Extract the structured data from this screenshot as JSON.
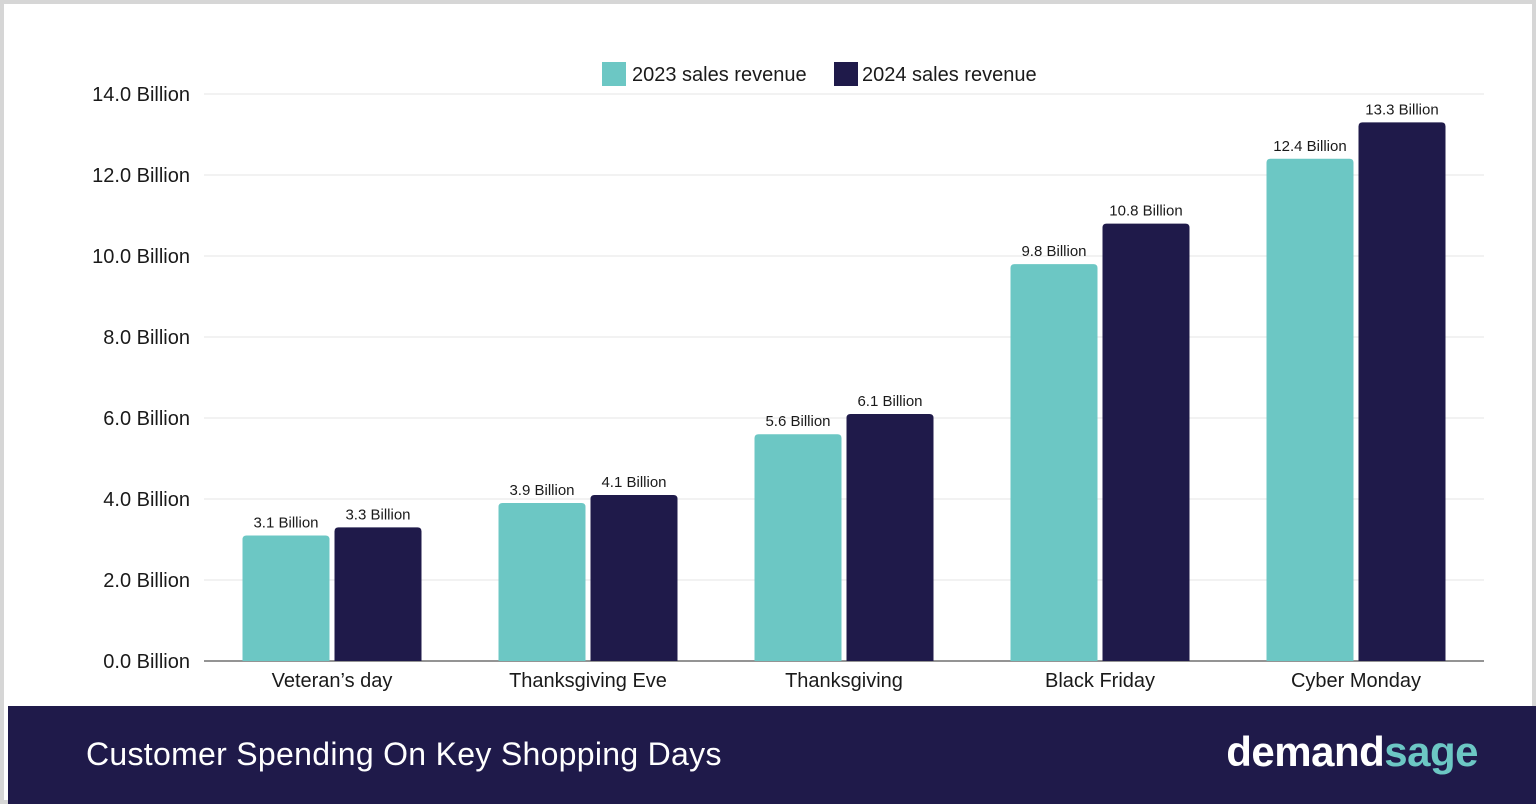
{
  "chart_data": {
    "type": "bar",
    "categories": [
      "Veteran’s day",
      "Thanksgiving Eve",
      "Thanksgiving",
      "Black Friday",
      "Cyber Monday"
    ],
    "series": [
      {
        "name": "2023 sales revenue",
        "color": "#6cc7c4",
        "values": [
          3.1,
          3.9,
          5.6,
          9.8,
          12.4
        ],
        "labels": [
          "3.1 Billion",
          "3.9 Billion",
          "5.6 Billion",
          "9.8 Billion",
          "12.4 Billion"
        ]
      },
      {
        "name": "2024 sales revenue",
        "color": "#1f1a4a",
        "values": [
          3.3,
          4.1,
          6.1,
          10.8,
          13.3
        ],
        "labels": [
          "3.3 Billion",
          "4.1 Billion",
          "6.1 Billion",
          "10.8 Billion",
          "13.3 Billion"
        ]
      }
    ],
    "yticks": [
      0,
      2,
      4,
      6,
      8,
      10,
      12,
      14
    ],
    "ytick_labels": [
      "0.0 Billion",
      "2.0 Billion",
      "4.0 Billion",
      "6.0 Billion",
      "8.0 Billion",
      "10.0 Billion",
      "12.0 Billion",
      "14.0 Billion"
    ],
    "ylim": [
      0,
      14
    ],
    "grid": true,
    "legend_position": "top-center"
  },
  "footer": {
    "title": "Customer Spending On Key Shopping Days",
    "brand_part1": "demand",
    "brand_part2": "sage",
    "background": "#1f1a4a",
    "brand_accent": "#6cc7c4"
  }
}
